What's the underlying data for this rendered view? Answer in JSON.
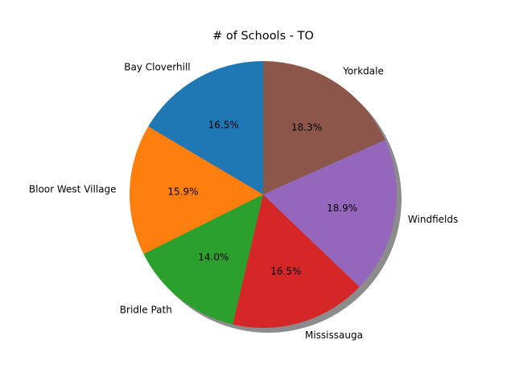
{
  "chart_data": {
    "type": "pie",
    "title": "# of Schools - TO",
    "start_angle_deg": 90,
    "direction": "counterclockwise",
    "shadow": true,
    "slices": [
      {
        "label": "Bay Cloverhill",
        "value": 16.5,
        "pct_label": "16.5%",
        "color": "#1f77b4"
      },
      {
        "label": "Bloor West Village",
        "value": 15.9,
        "pct_label": "15.9%",
        "color": "#ff7f0e"
      },
      {
        "label": "Bridle Path",
        "value": 14.0,
        "pct_label": "14.0%",
        "color": "#2ca02c"
      },
      {
        "label": "Mississauga",
        "value": 16.5,
        "pct_label": "16.5%",
        "color": "#d62728"
      },
      {
        "label": "Windfields",
        "value": 18.9,
        "pct_label": "18.9%",
        "color": "#9467bd"
      },
      {
        "label": "Yorkdale",
        "value": 18.3,
        "pct_label": "18.3%",
        "color": "#8c564b"
      }
    ]
  }
}
